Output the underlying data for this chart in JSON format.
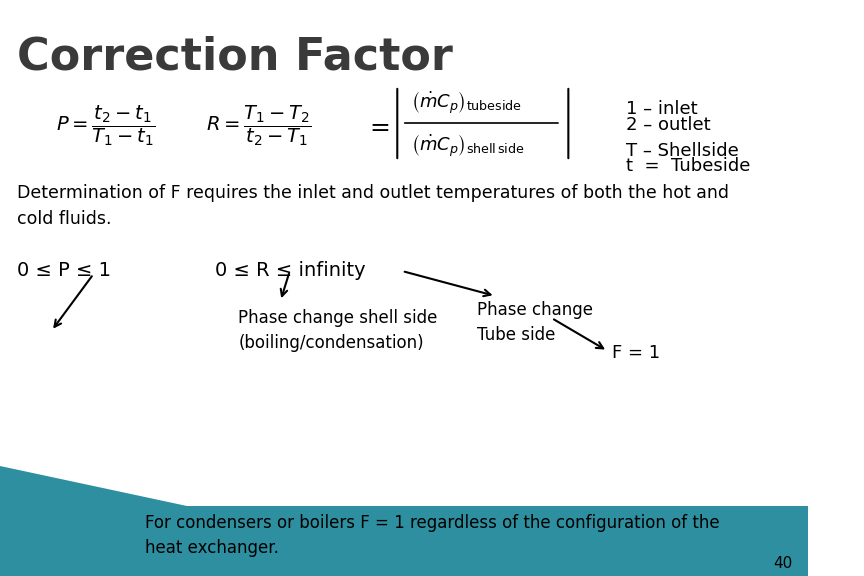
{
  "title": "Correction Factor",
  "title_color": "#3a3a3a",
  "title_fontsize": 32,
  "title_bold": true,
  "bg_color": "#ffffff",
  "legend_lines": [
    "1 – inlet",
    "2 – outlet",
    "T – Shellside",
    "t  =  Tubeside"
  ],
  "det_text": "Determination of F requires the inlet and outlet temperatures of both the hot and\ncold fluids.",
  "constraint1": "0 ≤ P ≤ 1",
  "constraint2": "0 ≤ R ≤ infinity",
  "phase_shell": "Phase change shell side\n(boiling/condensation)",
  "phase_tube": "Phase change\nTube side",
  "f_eq": "F = 1",
  "bottom_text": "For condensers or boilers F = 1 regardless of the configuration of the\nheat exchanger.",
  "page_num": "40",
  "bottom_bar_color": "#2e8fa0"
}
